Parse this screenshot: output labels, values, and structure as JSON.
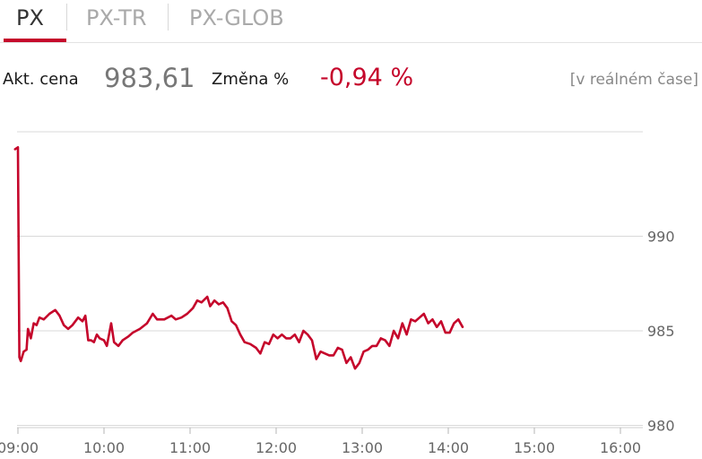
{
  "tabs": [
    {
      "label": "PX",
      "active": true
    },
    {
      "label": "PX-TR",
      "active": false
    },
    {
      "label": "PX-GLOB",
      "active": false
    }
  ],
  "quote": {
    "price_label": "Akt. cena",
    "price_value": "983,61",
    "change_label": "Změna %",
    "change_value": "-0,94 %",
    "realtime_note": "[v reálném čase]"
  },
  "colors": {
    "accent": "#c5062b",
    "grid": "#d9d9d9",
    "axis_text": "#666666"
  },
  "chart_data": {
    "type": "line",
    "title": "",
    "xlabel": "",
    "ylabel": "",
    "x_ticks": [
      "09:00",
      "10:00",
      "11:00",
      "12:00",
      "13:00",
      "14:00",
      "15:00",
      "16:00"
    ],
    "y_ticks": [
      980,
      985,
      990
    ],
    "xlim": [
      "09:00",
      "16:20"
    ],
    "ylim": [
      979.5,
      995.5
    ],
    "grid": true,
    "legend": "none",
    "series": [
      {
        "color": "#c5062b",
        "points": [
          [
            "08:58",
            994.6
          ],
          [
            "09:00",
            994.7
          ],
          [
            "09:01",
            983.6
          ],
          [
            "09:02",
            983.4
          ],
          [
            "09:04",
            983.9
          ],
          [
            "09:06",
            984.0
          ],
          [
            "09:07",
            985.1
          ],
          [
            "09:09",
            984.6
          ],
          [
            "09:11",
            985.4
          ],
          [
            "09:13",
            985.3
          ],
          [
            "09:15",
            985.7
          ],
          [
            "09:18",
            985.6
          ],
          [
            "09:22",
            985.9
          ],
          [
            "09:26",
            986.1
          ],
          [
            "09:29",
            985.8
          ],
          [
            "09:32",
            985.3
          ],
          [
            "09:35",
            985.1
          ],
          [
            "09:38",
            985.3
          ],
          [
            "09:42",
            985.7
          ],
          [
            "09:45",
            985.5
          ],
          [
            "09:47",
            985.8
          ],
          [
            "09:49",
            984.5
          ],
          [
            "09:51",
            984.5
          ],
          [
            "09:53",
            984.4
          ],
          [
            "09:55",
            984.8
          ],
          [
            "09:57",
            984.6
          ],
          [
            "10:00",
            984.5
          ],
          [
            "10:02",
            984.2
          ],
          [
            "10:05",
            985.4
          ],
          [
            "10:07",
            984.4
          ],
          [
            "10:10",
            984.2
          ],
          [
            "10:13",
            984.5
          ],
          [
            "10:17",
            984.7
          ],
          [
            "10:20",
            984.9
          ],
          [
            "10:25",
            985.1
          ],
          [
            "10:30",
            985.4
          ],
          [
            "10:34",
            985.9
          ],
          [
            "10:37",
            985.6
          ],
          [
            "10:42",
            985.6
          ],
          [
            "10:47",
            985.8
          ],
          [
            "10:50",
            985.6
          ],
          [
            "10:54",
            985.7
          ],
          [
            "10:58",
            985.9
          ],
          [
            "11:02",
            986.2
          ],
          [
            "11:05",
            986.6
          ],
          [
            "11:08",
            986.5
          ],
          [
            "11:12",
            986.8
          ],
          [
            "11:14",
            986.3
          ],
          [
            "11:17",
            986.6
          ],
          [
            "11:20",
            986.4
          ],
          [
            "11:23",
            986.5
          ],
          [
            "11:26",
            986.2
          ],
          [
            "11:29",
            985.5
          ],
          [
            "11:32",
            985.3
          ],
          [
            "11:35",
            984.8
          ],
          [
            "11:38",
            984.4
          ],
          [
            "11:42",
            984.3
          ],
          [
            "11:46",
            984.1
          ],
          [
            "11:49",
            983.8
          ],
          [
            "11:52",
            984.4
          ],
          [
            "11:55",
            984.3
          ],
          [
            "11:58",
            984.8
          ],
          [
            "12:01",
            984.6
          ],
          [
            "12:04",
            984.8
          ],
          [
            "12:07",
            984.6
          ],
          [
            "12:10",
            984.6
          ],
          [
            "12:13",
            984.8
          ],
          [
            "12:16",
            984.4
          ],
          [
            "12:19",
            985.0
          ],
          [
            "12:22",
            984.8
          ],
          [
            "12:25",
            984.5
          ],
          [
            "12:28",
            983.5
          ],
          [
            "12:31",
            983.9
          ],
          [
            "12:34",
            983.8
          ],
          [
            "12:37",
            983.7
          ],
          [
            "12:40",
            983.7
          ],
          [
            "12:43",
            984.1
          ],
          [
            "12:46",
            984.0
          ],
          [
            "12:49",
            983.3
          ],
          [
            "12:52",
            983.6
          ],
          [
            "12:55",
            983.0
          ],
          [
            "12:58",
            983.3
          ],
          [
            "13:01",
            983.9
          ],
          [
            "13:04",
            984.0
          ],
          [
            "13:07",
            984.2
          ],
          [
            "13:10",
            984.2
          ],
          [
            "13:13",
            984.6
          ],
          [
            "13:16",
            984.5
          ],
          [
            "13:19",
            984.2
          ],
          [
            "13:22",
            985.0
          ],
          [
            "13:25",
            984.6
          ],
          [
            "13:28",
            985.4
          ],
          [
            "13:31",
            984.8
          ],
          [
            "13:34",
            985.6
          ],
          [
            "13:37",
            985.5
          ],
          [
            "13:40",
            985.7
          ],
          [
            "13:43",
            985.9
          ],
          [
            "13:46",
            985.4
          ],
          [
            "13:49",
            985.6
          ],
          [
            "13:52",
            985.2
          ],
          [
            "13:55",
            985.5
          ],
          [
            "13:58",
            984.9
          ],
          [
            "14:01",
            984.9
          ],
          [
            "14:04",
            985.4
          ],
          [
            "14:07",
            985.6
          ],
          [
            "14:10",
            985.2
          ]
        ]
      }
    ]
  }
}
